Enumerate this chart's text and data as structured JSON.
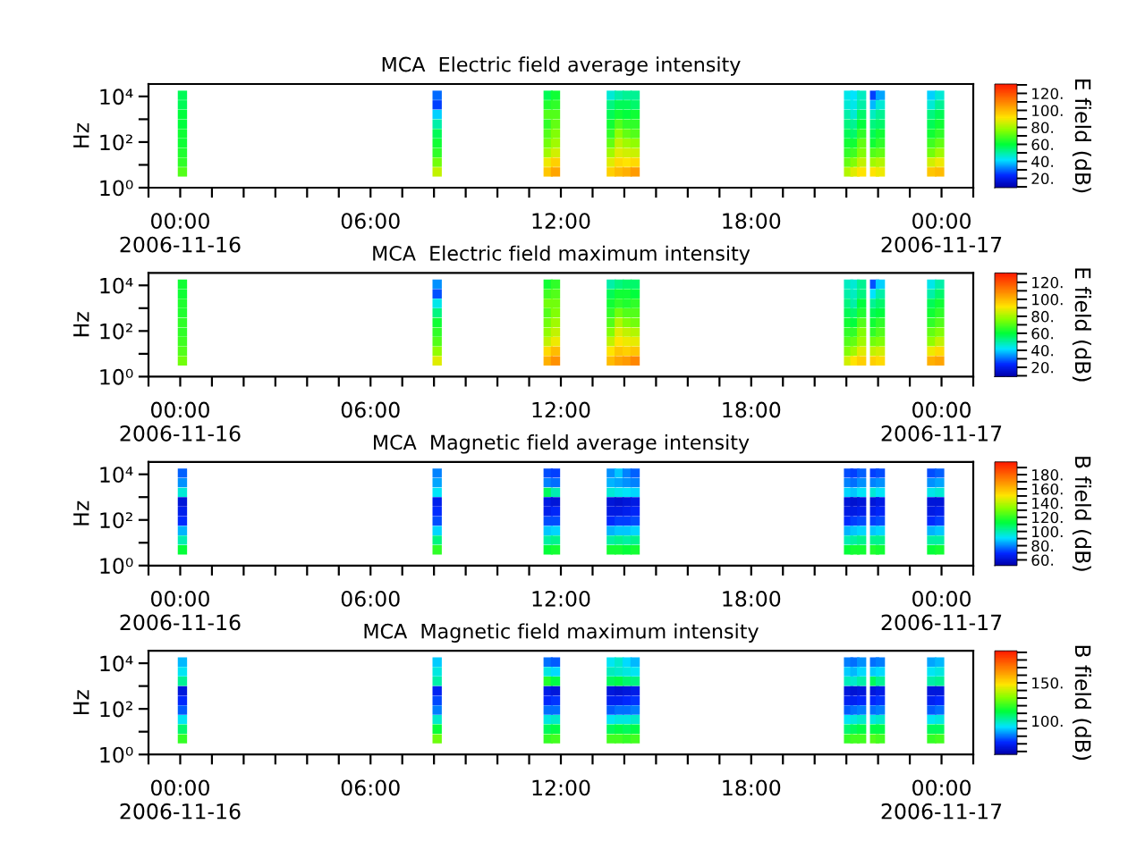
{
  "chart_data": [
    {
      "type": "scatter",
      "marker": "square",
      "title": "MCA  Electric field average intensity",
      "ylabel": "Hz",
      "clabel": "E field (dB)",
      "log": true,
      "x": [
        0.07,
        0.07,
        0.07,
        0.07,
        0.07,
        0.07,
        0.07,
        0.07,
        0.07,
        8.1,
        8.1,
        8.1,
        8.1,
        8.1,
        8.1,
        8.1,
        8.1,
        8.1,
        11.6,
        11.6,
        11.6,
        11.6,
        11.6,
        11.6,
        11.6,
        11.6,
        11.6,
        11.83,
        11.83,
        11.83,
        11.83,
        11.83,
        11.83,
        11.83,
        11.83,
        11.83,
        13.59,
        13.59,
        13.59,
        13.59,
        13.59,
        13.59,
        13.59,
        13.59,
        13.59,
        13.84,
        13.84,
        13.84,
        13.84,
        13.84,
        13.84,
        13.84,
        13.84,
        13.84,
        14.09,
        14.09,
        14.09,
        14.09,
        14.09,
        14.09,
        14.09,
        14.09,
        14.09,
        14.34,
        14.34,
        14.34,
        14.34,
        14.34,
        14.34,
        14.34,
        14.34,
        14.34,
        21.07,
        21.07,
        21.07,
        21.07,
        21.07,
        21.07,
        21.07,
        21.07,
        21.07,
        21.27,
        21.27,
        21.27,
        21.27,
        21.27,
        21.27,
        21.27,
        21.27,
        21.27,
        21.48,
        21.48,
        21.48,
        21.48,
        21.48,
        21.48,
        21.48,
        21.48,
        21.48,
        21.89,
        21.89,
        21.89,
        21.89,
        21.89,
        21.89,
        21.89,
        21.89,
        21.89,
        22.07,
        22.07,
        22.07,
        22.07,
        22.07,
        22.07,
        22.07,
        22.07,
        22.07,
        23.69,
        23.69,
        23.69,
        23.69,
        23.69,
        23.69,
        23.69,
        23.69,
        23.69,
        23.94,
        23.94,
        23.94,
        23.94,
        23.94,
        23.94,
        23.94,
        23.94,
        23.94
      ],
      "values": [
        11220,
        4266,
        1622,
        617,
        234,
        89,
        34,
        13,
        4.9,
        11220,
        4266,
        1622,
        617,
        234,
        89,
        34,
        13,
        4.9,
        11220,
        4266,
        1622,
        617,
        234,
        89,
        34,
        13,
        4.9,
        11220,
        4266,
        1622,
        617,
        234,
        89,
        34,
        13,
        4.9,
        11220,
        4266,
        1622,
        617,
        234,
        89,
        34,
        13,
        4.9,
        11220,
        4266,
        1622,
        617,
        234,
        89,
        34,
        13,
        4.9,
        11220,
        4266,
        1622,
        617,
        234,
        89,
        34,
        13,
        4.9,
        11220,
        4266,
        1622,
        617,
        234,
        89,
        34,
        13,
        4.9,
        11220,
        4266,
        1622,
        617,
        234,
        89,
        34,
        13,
        4.9,
        11220,
        4266,
        1622,
        617,
        234,
        89,
        34,
        13,
        4.9,
        11220,
        4266,
        1622,
        617,
        234,
        89,
        34,
        13,
        4.9,
        11220,
        4266,
        1622,
        617,
        234,
        89,
        34,
        13,
        4.9,
        11220,
        4266,
        1622,
        617,
        234,
        89,
        34,
        13,
        4.9,
        11220,
        4266,
        1622,
        617,
        234,
        89,
        34,
        13,
        4.9,
        11220,
        4266,
        1622,
        617,
        234,
        89,
        34,
        13,
        4.9
      ],
      "cvalues": [
        58,
        58,
        60,
        60,
        62,
        62,
        64,
        66,
        70,
        30,
        26,
        40,
        50,
        58,
        62,
        66,
        74,
        84,
        58,
        64,
        70,
        66,
        70,
        74,
        80,
        90,
        98,
        62,
        66,
        70,
        72,
        76,
        80,
        86,
        96,
        104,
        46,
        54,
        58,
        62,
        66,
        72,
        80,
        88,
        96,
        50,
        58,
        62,
        70,
        78,
        84,
        88,
        94,
        100,
        52,
        58,
        60,
        66,
        72,
        80,
        86,
        92,
        102,
        52,
        56,
        62,
        66,
        70,
        78,
        85,
        94,
        106,
        44,
        46,
        50,
        54,
        58,
        62,
        66,
        72,
        82,
        42,
        44,
        46,
        52,
        56,
        62,
        68,
        76,
        88,
        48,
        50,
        56,
        60,
        66,
        72,
        76,
        84,
        92,
        26,
        38,
        48,
        54,
        58,
        62,
        70,
        80,
        92,
        36,
        46,
        52,
        56,
        62,
        66,
        72,
        82,
        90,
        40,
        46,
        54,
        58,
        62,
        68,
        74,
        86,
        98,
        46,
        52,
        58,
        62,
        66,
        72,
        80,
        90,
        100
      ],
      "clim": [
        9,
        131
      ],
      "cticks": [
        {
          "value": 10,
          "label": null
        },
        {
          "value": 20,
          "label": "20."
        },
        {
          "value": 30,
          "label": null
        },
        {
          "value": 40,
          "label": "40."
        },
        {
          "value": 50,
          "label": null
        },
        {
          "value": 60,
          "label": "60."
        },
        {
          "value": 70,
          "label": null
        },
        {
          "value": 80,
          "label": "80."
        },
        {
          "value": 90,
          "label": null
        },
        {
          "value": 100,
          "label": "100."
        },
        {
          "value": 110,
          "label": null
        },
        {
          "value": 120,
          "label": "120."
        },
        {
          "value": 130,
          "label": null
        }
      ],
      "xlim": [
        -1,
        25
      ],
      "xticks": [
        {
          "value": -1,
          "label": null
        },
        {
          "value": 0,
          "label": "00:00\n2006-11-16"
        },
        {
          "value": 1,
          "label": null
        },
        {
          "value": 2,
          "label": null
        },
        {
          "value": 3,
          "label": null
        },
        {
          "value": 4,
          "label": null
        },
        {
          "value": 5,
          "label": null
        },
        {
          "value": 6,
          "label": "06:00"
        },
        {
          "value": 7,
          "label": null
        },
        {
          "value": 8,
          "label": null
        },
        {
          "value": 9,
          "label": null
        },
        {
          "value": 10,
          "label": null
        },
        {
          "value": 11,
          "label": null
        },
        {
          "value": 12,
          "label": "12:00"
        },
        {
          "value": 13,
          "label": null
        },
        {
          "value": 14,
          "label": null
        },
        {
          "value": 15,
          "label": null
        },
        {
          "value": 16,
          "label": null
        },
        {
          "value": 17,
          "label": null
        },
        {
          "value": 18,
          "label": "18:00"
        },
        {
          "value": 19,
          "label": null
        },
        {
          "value": 20,
          "label": null
        },
        {
          "value": 21,
          "label": null
        },
        {
          "value": 22,
          "label": null
        },
        {
          "value": 23,
          "label": null
        },
        {
          "value": 24,
          "label": "00:00\n2006-11-17"
        },
        {
          "value": 25,
          "label": null
        }
      ],
      "ylim": [
        1,
        35000
      ],
      "yticks": [
        {
          "value": 1,
          "label": "10⁰"
        },
        {
          "value": 10,
          "label": null
        },
        {
          "value": 100,
          "label": "10²"
        },
        {
          "value": 1000,
          "label": null
        },
        {
          "value": 10000,
          "label": "10⁴"
        }
      ]
    },
    {
      "type": "scatter",
      "marker": "square",
      "title": "MCA  Electric field maximum intensity",
      "ylabel": "Hz",
      "clabel": "E field (dB)",
      "log": true,
      "x": [
        0.07,
        0.07,
        0.07,
        0.07,
        0.07,
        0.07,
        0.07,
        0.07,
        0.07,
        8.1,
        8.1,
        8.1,
        8.1,
        8.1,
        8.1,
        8.1,
        8.1,
        8.1,
        11.6,
        11.6,
        11.6,
        11.6,
        11.6,
        11.6,
        11.6,
        11.6,
        11.6,
        11.83,
        11.83,
        11.83,
        11.83,
        11.83,
        11.83,
        11.83,
        11.83,
        11.83,
        13.59,
        13.59,
        13.59,
        13.59,
        13.59,
        13.59,
        13.59,
        13.59,
        13.59,
        13.84,
        13.84,
        13.84,
        13.84,
        13.84,
        13.84,
        13.84,
        13.84,
        13.84,
        14.09,
        14.09,
        14.09,
        14.09,
        14.09,
        14.09,
        14.09,
        14.09,
        14.09,
        14.34,
        14.34,
        14.34,
        14.34,
        14.34,
        14.34,
        14.34,
        14.34,
        14.34,
        21.07,
        21.07,
        21.07,
        21.07,
        21.07,
        21.07,
        21.07,
        21.07,
        21.07,
        21.27,
        21.27,
        21.27,
        21.27,
        21.27,
        21.27,
        21.27,
        21.27,
        21.27,
        21.48,
        21.48,
        21.48,
        21.48,
        21.48,
        21.48,
        21.48,
        21.48,
        21.48,
        21.89,
        21.89,
        21.89,
        21.89,
        21.89,
        21.89,
        21.89,
        21.89,
        21.89,
        22.07,
        22.07,
        22.07,
        22.07,
        22.07,
        22.07,
        22.07,
        22.07,
        22.07,
        23.69,
        23.69,
        23.69,
        23.69,
        23.69,
        23.69,
        23.69,
        23.69,
        23.69,
        23.94,
        23.94,
        23.94,
        23.94,
        23.94,
        23.94,
        23.94,
        23.94,
        23.94
      ],
      "values": [
        11220,
        4266,
        1622,
        617,
        234,
        89,
        34,
        13,
        4.9,
        11220,
        4266,
        1622,
        617,
        234,
        89,
        34,
        13,
        4.9,
        11220,
        4266,
        1622,
        617,
        234,
        89,
        34,
        13,
        4.9,
        11220,
        4266,
        1622,
        617,
        234,
        89,
        34,
        13,
        4.9,
        11220,
        4266,
        1622,
        617,
        234,
        89,
        34,
        13,
        4.9,
        11220,
        4266,
        1622,
        617,
        234,
        89,
        34,
        13,
        4.9,
        11220,
        4266,
        1622,
        617,
        234,
        89,
        34,
        13,
        4.9,
        11220,
        4266,
        1622,
        617,
        234,
        89,
        34,
        13,
        4.9,
        11220,
        4266,
        1622,
        617,
        234,
        89,
        34,
        13,
        4.9,
        11220,
        4266,
        1622,
        617,
        234,
        89,
        34,
        13,
        4.9,
        11220,
        4266,
        1622,
        617,
        234,
        89,
        34,
        13,
        4.9,
        11220,
        4266,
        1622,
        617,
        234,
        89,
        34,
        13,
        4.9,
        11220,
        4266,
        1622,
        617,
        234,
        89,
        34,
        13,
        4.9,
        11220,
        4266,
        1622,
        617,
        234,
        89,
        34,
        13,
        4.9,
        11220,
        4266,
        1622,
        617,
        234,
        89,
        34,
        13,
        4.9
      ],
      "cvalues": [
        62,
        62,
        64,
        64,
        66,
        66,
        68,
        70,
        74,
        34,
        28,
        44,
        54,
        62,
        66,
        70,
        78,
        88,
        62,
        68,
        74,
        70,
        74,
        78,
        84,
        94,
        102,
        66,
        70,
        74,
        76,
        80,
        84,
        90,
        100,
        108,
        50,
        58,
        62,
        66,
        70,
        76,
        84,
        92,
        100,
        54,
        62,
        66,
        74,
        82,
        88,
        92,
        98,
        104,
        56,
        62,
        64,
        70,
        76,
        84,
        90,
        96,
        106,
        56,
        60,
        66,
        70,
        74,
        82,
        89,
        98,
        110,
        48,
        50,
        54,
        58,
        62,
        66,
        70,
        76,
        86,
        46,
        48,
        50,
        56,
        60,
        66,
        72,
        80,
        92,
        52,
        54,
        60,
        64,
        70,
        76,
        80,
        88,
        96,
        28,
        42,
        52,
        58,
        62,
        66,
        74,
        84,
        96,
        40,
        50,
        56,
        60,
        66,
        70,
        76,
        86,
        94,
        44,
        50,
        58,
        62,
        66,
        72,
        78,
        90,
        102,
        50,
        56,
        62,
        66,
        70,
        76,
        84,
        94,
        104
      ],
      "clim": [
        9,
        131
      ],
      "cticks": [
        {
          "value": 10,
          "label": null
        },
        {
          "value": 20,
          "label": "20."
        },
        {
          "value": 30,
          "label": null
        },
        {
          "value": 40,
          "label": "40."
        },
        {
          "value": 50,
          "label": null
        },
        {
          "value": 60,
          "label": "60."
        },
        {
          "value": 70,
          "label": null
        },
        {
          "value": 80,
          "label": "80."
        },
        {
          "value": 90,
          "label": null
        },
        {
          "value": 100,
          "label": "100."
        },
        {
          "value": 110,
          "label": null
        },
        {
          "value": 120,
          "label": "120."
        },
        {
          "value": 130,
          "label": null
        }
      ],
      "xlim": [
        -1,
        25
      ],
      "xticks": [
        {
          "value": -1,
          "label": null
        },
        {
          "value": 0,
          "label": "00:00\n2006-11-16"
        },
        {
          "value": 1,
          "label": null
        },
        {
          "value": 2,
          "label": null
        },
        {
          "value": 3,
          "label": null
        },
        {
          "value": 4,
          "label": null
        },
        {
          "value": 5,
          "label": null
        },
        {
          "value": 6,
          "label": "06:00"
        },
        {
          "value": 7,
          "label": null
        },
        {
          "value": 8,
          "label": null
        },
        {
          "value": 9,
          "label": null
        },
        {
          "value": 10,
          "label": null
        },
        {
          "value": 11,
          "label": null
        },
        {
          "value": 12,
          "label": "12:00"
        },
        {
          "value": 13,
          "label": null
        },
        {
          "value": 14,
          "label": null
        },
        {
          "value": 15,
          "label": null
        },
        {
          "value": 16,
          "label": null
        },
        {
          "value": 17,
          "label": null
        },
        {
          "value": 18,
          "label": "18:00"
        },
        {
          "value": 19,
          "label": null
        },
        {
          "value": 20,
          "label": null
        },
        {
          "value": 21,
          "label": null
        },
        {
          "value": 22,
          "label": null
        },
        {
          "value": 23,
          "label": null
        },
        {
          "value": 24,
          "label": "00:00\n2006-11-17"
        },
        {
          "value": 25,
          "label": null
        }
      ],
      "ylim": [
        1,
        35000
      ],
      "yticks": [
        {
          "value": 1,
          "label": "10⁰"
        },
        {
          "value": 10,
          "label": null
        },
        {
          "value": 100,
          "label": "10²"
        },
        {
          "value": 1000,
          "label": null
        },
        {
          "value": 10000,
          "label": "10⁴"
        }
      ]
    },
    {
      "type": "scatter",
      "marker": "square",
      "title": "MCA  Magnetic field average intensity",
      "ylabel": "Hz",
      "clabel": "B field (dB)",
      "log": true,
      "x": [
        0.07,
        0.07,
        0.07,
        0.07,
        0.07,
        0.07,
        0.07,
        0.07,
        0.07,
        8.1,
        8.1,
        8.1,
        8.1,
        8.1,
        8.1,
        8.1,
        8.1,
        8.1,
        11.6,
        11.6,
        11.6,
        11.6,
        11.6,
        11.6,
        11.6,
        11.6,
        11.6,
        11.83,
        11.83,
        11.83,
        11.83,
        11.83,
        11.83,
        11.83,
        11.83,
        11.83,
        13.59,
        13.59,
        13.59,
        13.59,
        13.59,
        13.59,
        13.59,
        13.59,
        13.59,
        13.84,
        13.84,
        13.84,
        13.84,
        13.84,
        13.84,
        13.84,
        13.84,
        13.84,
        14.09,
        14.09,
        14.09,
        14.09,
        14.09,
        14.09,
        14.09,
        14.09,
        14.09,
        14.34,
        14.34,
        14.34,
        14.34,
        14.34,
        14.34,
        14.34,
        14.34,
        14.34,
        21.07,
        21.07,
        21.07,
        21.07,
        21.07,
        21.07,
        21.07,
        21.07,
        21.07,
        21.27,
        21.27,
        21.27,
        21.27,
        21.27,
        21.27,
        21.27,
        21.27,
        21.27,
        21.48,
        21.48,
        21.48,
        21.48,
        21.48,
        21.48,
        21.48,
        21.48,
        21.48,
        21.89,
        21.89,
        21.89,
        21.89,
        21.89,
        21.89,
        21.89,
        21.89,
        21.89,
        22.07,
        22.07,
        22.07,
        22.07,
        22.07,
        22.07,
        22.07,
        22.07,
        22.07,
        23.69,
        23.69,
        23.69,
        23.69,
        23.69,
        23.69,
        23.69,
        23.69,
        23.69,
        23.94,
        23.94,
        23.94,
        23.94,
        23.94,
        23.94,
        23.94,
        23.94,
        23.94
      ],
      "values": [
        11220,
        4266,
        1622,
        617,
        234,
        89,
        34,
        13,
        4.9,
        11220,
        4266,
        1622,
        617,
        234,
        89,
        34,
        13,
        4.9,
        11220,
        4266,
        1622,
        617,
        234,
        89,
        34,
        13,
        4.9,
        11220,
        4266,
        1622,
        617,
        234,
        89,
        34,
        13,
        4.9,
        11220,
        4266,
        1622,
        617,
        234,
        89,
        34,
        13,
        4.9,
        11220,
        4266,
        1622,
        617,
        234,
        89,
        34,
        13,
        4.9,
        11220,
        4266,
        1622,
        617,
        234,
        89,
        34,
        13,
        4.9,
        11220,
        4266,
        1622,
        617,
        234,
        89,
        34,
        13,
        4.9,
        11220,
        4266,
        1622,
        617,
        234,
        89,
        34,
        13,
        4.9,
        11220,
        4266,
        1622,
        617,
        234,
        89,
        34,
        13,
        4.9,
        11220,
        4266,
        1622,
        617,
        234,
        89,
        34,
        13,
        4.9,
        11220,
        4266,
        1622,
        617,
        234,
        89,
        34,
        13,
        4.9,
        11220,
        4266,
        1622,
        617,
        234,
        89,
        34,
        13,
        4.9,
        11220,
        4266,
        1622,
        617,
        234,
        89,
        34,
        13,
        4.9,
        11220,
        4266,
        1622,
        617,
        234,
        89,
        34,
        13,
        4.9
      ],
      "cvalues": [
        76,
        82,
        96,
        62,
        66,
        70,
        86,
        100,
        114,
        80,
        84,
        92,
        66,
        70,
        74,
        90,
        106,
        120,
        74,
        80,
        110,
        64,
        66,
        74,
        88,
        102,
        114,
        72,
        78,
        100,
        62,
        68,
        74,
        90,
        104,
        116,
        82,
        86,
        96,
        62,
        64,
        70,
        86,
        102,
        116,
        88,
        84,
        94,
        60,
        64,
        72,
        88,
        104,
        116,
        80,
        82,
        92,
        62,
        66,
        72,
        88,
        102,
        114,
        76,
        80,
        90,
        64,
        68,
        74,
        90,
        104,
        116,
        74,
        80,
        90,
        62,
        64,
        70,
        86,
        100,
        114,
        72,
        78,
        88,
        60,
        64,
        72,
        88,
        102,
        116,
        76,
        82,
        92,
        62,
        66,
        74,
        90,
        104,
        116,
        72,
        80,
        96,
        62,
        66,
        72,
        88,
        104,
        118,
        74,
        82,
        92,
        64,
        68,
        74,
        90,
        104,
        116,
        74,
        82,
        94,
        62,
        64,
        70,
        86,
        102,
        114,
        76,
        84,
        96,
        62,
        66,
        72,
        88,
        102,
        116
      ],
      "clim": [
        52,
        198
      ],
      "cticks": [
        {
          "value": 60,
          "label": "60."
        },
        {
          "value": 70,
          "label": null
        },
        {
          "value": 80,
          "label": "80."
        },
        {
          "value": 90,
          "label": null
        },
        {
          "value": 100,
          "label": "100."
        },
        {
          "value": 110,
          "label": null
        },
        {
          "value": 120,
          "label": "120."
        },
        {
          "value": 130,
          "label": null
        },
        {
          "value": 140,
          "label": "140."
        },
        {
          "value": 150,
          "label": null
        },
        {
          "value": 160,
          "label": "160."
        },
        {
          "value": 170,
          "label": null
        },
        {
          "value": 180,
          "label": "180."
        },
        {
          "value": 190,
          "label": null
        }
      ],
      "xlim": [
        -1,
        25
      ],
      "xticks": [
        {
          "value": -1,
          "label": null
        },
        {
          "value": 0,
          "label": "00:00\n2006-11-16"
        },
        {
          "value": 1,
          "label": null
        },
        {
          "value": 2,
          "label": null
        },
        {
          "value": 3,
          "label": null
        },
        {
          "value": 4,
          "label": null
        },
        {
          "value": 5,
          "label": null
        },
        {
          "value": 6,
          "label": "06:00"
        },
        {
          "value": 7,
          "label": null
        },
        {
          "value": 8,
          "label": null
        },
        {
          "value": 9,
          "label": null
        },
        {
          "value": 10,
          "label": null
        },
        {
          "value": 11,
          "label": null
        },
        {
          "value": 12,
          "label": "12:00"
        },
        {
          "value": 13,
          "label": null
        },
        {
          "value": 14,
          "label": null
        },
        {
          "value": 15,
          "label": null
        },
        {
          "value": 16,
          "label": null
        },
        {
          "value": 17,
          "label": null
        },
        {
          "value": 18,
          "label": "18:00"
        },
        {
          "value": 19,
          "label": null
        },
        {
          "value": 20,
          "label": null
        },
        {
          "value": 21,
          "label": null
        },
        {
          "value": 22,
          "label": null
        },
        {
          "value": 23,
          "label": null
        },
        {
          "value": 24,
          "label": "00:00\n2006-11-17"
        },
        {
          "value": 25,
          "label": null
        }
      ],
      "ylim": [
        1,
        35000
      ],
      "yticks": [
        {
          "value": 1,
          "label": "10⁰"
        },
        {
          "value": 10,
          "label": null
        },
        {
          "value": 100,
          "label": "10²"
        },
        {
          "value": 1000,
          "label": null
        },
        {
          "value": 10000,
          "label": "10⁴"
        }
      ]
    },
    {
      "type": "scatter",
      "marker": "square",
      "title": "MCA  Magnetic field maximum intensity",
      "ylabel": "Hz",
      "clabel": "B field (dB)",
      "log": true,
      "x": [
        0.07,
        0.07,
        0.07,
        0.07,
        0.07,
        0.07,
        0.07,
        0.07,
        0.07,
        8.1,
        8.1,
        8.1,
        8.1,
        8.1,
        8.1,
        8.1,
        8.1,
        8.1,
        11.6,
        11.6,
        11.6,
        11.6,
        11.6,
        11.6,
        11.6,
        11.6,
        11.6,
        11.83,
        11.83,
        11.83,
        11.83,
        11.83,
        11.83,
        11.83,
        11.83,
        11.83,
        13.59,
        13.59,
        13.59,
        13.59,
        13.59,
        13.59,
        13.59,
        13.59,
        13.59,
        13.84,
        13.84,
        13.84,
        13.84,
        13.84,
        13.84,
        13.84,
        13.84,
        13.84,
        14.09,
        14.09,
        14.09,
        14.09,
        14.09,
        14.09,
        14.09,
        14.09,
        14.09,
        14.34,
        14.34,
        14.34,
        14.34,
        14.34,
        14.34,
        14.34,
        14.34,
        14.34,
        21.07,
        21.07,
        21.07,
        21.07,
        21.07,
        21.07,
        21.07,
        21.07,
        21.07,
        21.27,
        21.27,
        21.27,
        21.27,
        21.27,
        21.27,
        21.27,
        21.27,
        21.27,
        21.48,
        21.48,
        21.48,
        21.48,
        21.48,
        21.48,
        21.48,
        21.48,
        21.48,
        21.89,
        21.89,
        21.89,
        21.89,
        21.89,
        21.89,
        21.89,
        21.89,
        21.89,
        22.07,
        22.07,
        22.07,
        22.07,
        22.07,
        22.07,
        22.07,
        22.07,
        22.07,
        23.69,
        23.69,
        23.69,
        23.69,
        23.69,
        23.69,
        23.69,
        23.69,
        23.69,
        23.94,
        23.94,
        23.94,
        23.94,
        23.94,
        23.94,
        23.94,
        23.94,
        23.94
      ],
      "values": [
        11220,
        4266,
        1622,
        617,
        234,
        89,
        34,
        13,
        4.9,
        11220,
        4266,
        1622,
        617,
        234,
        89,
        34,
        13,
        4.9,
        11220,
        4266,
        1622,
        617,
        234,
        89,
        34,
        13,
        4.9,
        11220,
        4266,
        1622,
        617,
        234,
        89,
        34,
        13,
        4.9,
        11220,
        4266,
        1622,
        617,
        234,
        89,
        34,
        13,
        4.9,
        11220,
        4266,
        1622,
        617,
        234,
        89,
        34,
        13,
        4.9,
        11220,
        4266,
        1622,
        617,
        234,
        89,
        34,
        13,
        4.9,
        11220,
        4266,
        1622,
        617,
        234,
        89,
        34,
        13,
        4.9,
        11220,
        4266,
        1622,
        617,
        234,
        89,
        34,
        13,
        4.9,
        11220,
        4266,
        1622,
        617,
        234,
        89,
        34,
        13,
        4.9,
        11220,
        4266,
        1622,
        617,
        234,
        89,
        34,
        13,
        4.9,
        11220,
        4266,
        1622,
        617,
        234,
        89,
        34,
        13,
        4.9,
        11220,
        4266,
        1622,
        617,
        234,
        89,
        34,
        13,
        4.9,
        11220,
        4266,
        1622,
        617,
        234,
        89,
        34,
        13,
        4.9,
        11220,
        4266,
        1622,
        617,
        234,
        89,
        34,
        13,
        4.9
      ],
      "cvalues": [
        88,
        94,
        104,
        66,
        72,
        78,
        94,
        108,
        120,
        90,
        96,
        102,
        70,
        76,
        82,
        98,
        114,
        128,
        80,
        96,
        118,
        68,
        72,
        80,
        96,
        110,
        120,
        78,
        92,
        112,
        66,
        74,
        80,
        98,
        112,
        122,
        94,
        100,
        110,
        66,
        70,
        78,
        94,
        110,
        122,
        98,
        98,
        112,
        64,
        70,
        80,
        96,
        112,
        122,
        92,
        96,
        108,
        66,
        72,
        80,
        96,
        110,
        120,
        88,
        94,
        106,
        68,
        74,
        82,
        98,
        112,
        122,
        82,
        90,
        100,
        66,
        70,
        78,
        94,
        108,
        120,
        80,
        88,
        98,
        64,
        70,
        80,
        96,
        110,
        122,
        84,
        92,
        102,
        66,
        72,
        82,
        98,
        112,
        122,
        80,
        90,
        110,
        66,
        72,
        80,
        96,
        112,
        124,
        82,
        92,
        104,
        68,
        74,
        82,
        98,
        112,
        122,
        86,
        94,
        102,
        66,
        70,
        78,
        94,
        110,
        120,
        88,
        96,
        104,
        66,
        72,
        80,
        96,
        110,
        122
      ],
      "clim": [
        56,
        192
      ],
      "cticks": [
        {
          "value": 60,
          "label": null
        },
        {
          "value": 70,
          "label": null
        },
        {
          "value": 80,
          "label": null
        },
        {
          "value": 90,
          "label": null
        },
        {
          "value": 100,
          "label": "100."
        },
        {
          "value": 110,
          "label": null
        },
        {
          "value": 120,
          "label": null
        },
        {
          "value": 130,
          "label": null
        },
        {
          "value": 140,
          "label": null
        },
        {
          "value": 150,
          "label": "150."
        },
        {
          "value": 160,
          "label": null
        },
        {
          "value": 170,
          "label": null
        },
        {
          "value": 180,
          "label": null
        },
        {
          "value": 190,
          "label": null
        }
      ],
      "xlim": [
        -1,
        25
      ],
      "xticks": [
        {
          "value": -1,
          "label": null
        },
        {
          "value": 0,
          "label": "00:00\n2006-11-16"
        },
        {
          "value": 1,
          "label": null
        },
        {
          "value": 2,
          "label": null
        },
        {
          "value": 3,
          "label": null
        },
        {
          "value": 4,
          "label": null
        },
        {
          "value": 5,
          "label": null
        },
        {
          "value": 6,
          "label": "06:00"
        },
        {
          "value": 7,
          "label": null
        },
        {
          "value": 8,
          "label": null
        },
        {
          "value": 9,
          "label": null
        },
        {
          "value": 10,
          "label": null
        },
        {
          "value": 11,
          "label": null
        },
        {
          "value": 12,
          "label": "12:00"
        },
        {
          "value": 13,
          "label": null
        },
        {
          "value": 14,
          "label": null
        },
        {
          "value": 15,
          "label": null
        },
        {
          "value": 16,
          "label": null
        },
        {
          "value": 17,
          "label": null
        },
        {
          "value": 18,
          "label": "18:00"
        },
        {
          "value": 19,
          "label": null
        },
        {
          "value": 20,
          "label": null
        },
        {
          "value": 21,
          "label": null
        },
        {
          "value": 22,
          "label": null
        },
        {
          "value": 23,
          "label": null
        },
        {
          "value": 24,
          "label": "00:00\n2006-11-17"
        },
        {
          "value": 25,
          "label": null
        }
      ],
      "ylim": [
        1,
        35000
      ],
      "yticks": [
        {
          "value": 1,
          "label": "10⁰"
        },
        {
          "value": 10,
          "label": null
        },
        {
          "value": 100,
          "label": "10²"
        },
        {
          "value": 1000,
          "label": null
        },
        {
          "value": 10000,
          "label": "10⁴"
        }
      ]
    }
  ]
}
